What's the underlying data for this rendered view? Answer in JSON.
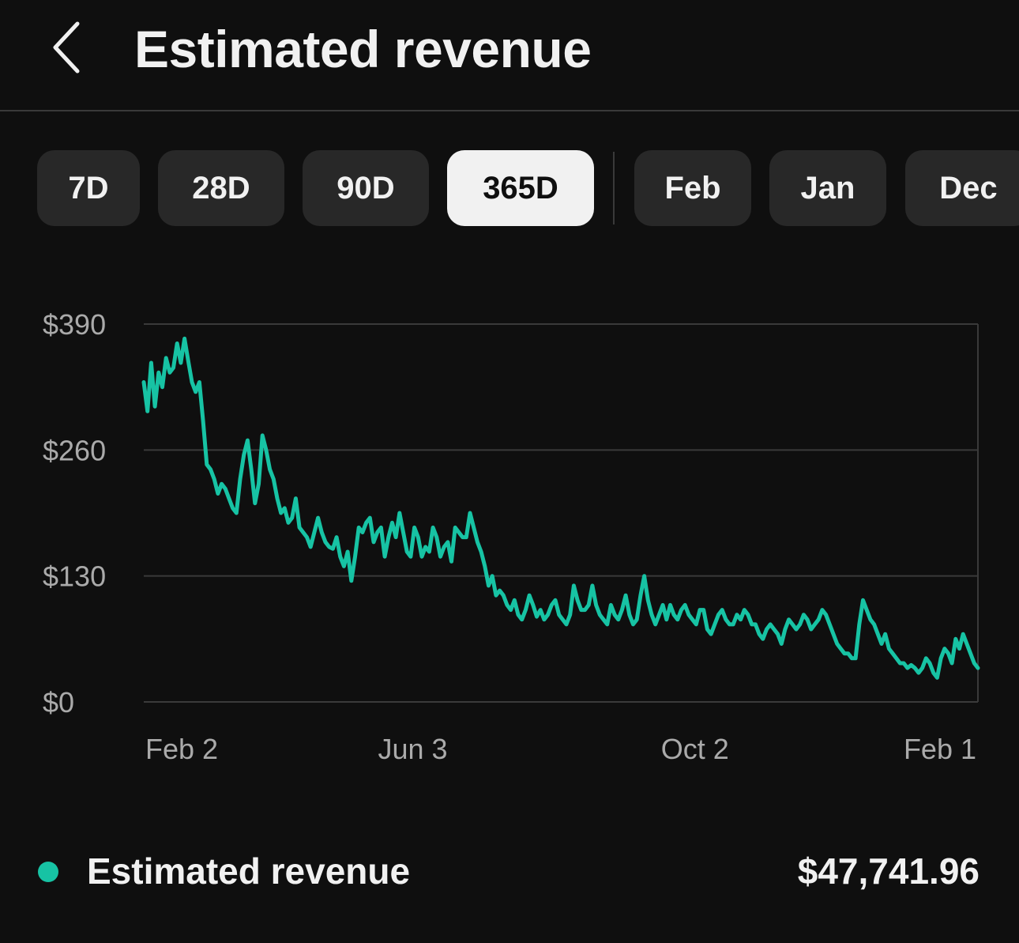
{
  "header": {
    "title": "Estimated revenue",
    "back_icon": "chevron-left-icon"
  },
  "range_chips": [
    {
      "label": "7D",
      "selected": false
    },
    {
      "label": "28D",
      "selected": false
    },
    {
      "label": "90D",
      "selected": false
    },
    {
      "label": "365D",
      "selected": true
    },
    {
      "label": "Feb",
      "selected": false
    },
    {
      "label": "Jan",
      "selected": false
    },
    {
      "label": "Dec",
      "selected": false
    }
  ],
  "colors": {
    "accent": "#17c3a4",
    "background": "#0f0f0f",
    "chip": "#282828",
    "chip_active": "#f1f1f1",
    "grid": "#3a3a3a"
  },
  "chart_data": {
    "type": "line",
    "series": [
      {
        "values": [
          330,
          300,
          350,
          305,
          340,
          325,
          355,
          340,
          345,
          370,
          350,
          375,
          352,
          330,
          320,
          330,
          290,
          245,
          240,
          230,
          215,
          225,
          220,
          210,
          200,
          195,
          230,
          255,
          270,
          240,
          205,
          225,
          275,
          260,
          240,
          230,
          210,
          195,
          200,
          185,
          190,
          210,
          180,
          175,
          170,
          160,
          175,
          190,
          175,
          165,
          160,
          158,
          170,
          150,
          140,
          155,
          125,
          150,
          180,
          175,
          185,
          190,
          165,
          175,
          180,
          150,
          170,
          185,
          170,
          195,
          175,
          155,
          150,
          180,
          170,
          150,
          160,
          155,
          180,
          170,
          150,
          160,
          165,
          145,
          180,
          175,
          170,
          170,
          195,
          180,
          165,
          155,
          140,
          120,
          130,
          110,
          115,
          110,
          100,
          95,
          105,
          90,
          85,
          95,
          110,
          100,
          88,
          95,
          85,
          90,
          100,
          105,
          90,
          85,
          80,
          90,
          120,
          105,
          95,
          95,
          100,
          120,
          100,
          90,
          85,
          80,
          100,
          90,
          85,
          95,
          110,
          90,
          80,
          85,
          110,
          130,
          105,
          90,
          80,
          90,
          100,
          85,
          100,
          90,
          85,
          95,
          100,
          90,
          85,
          80,
          95,
          95,
          75,
          70,
          80,
          90,
          95,
          85,
          80,
          80,
          90,
          85,
          95,
          90,
          80,
          80,
          70,
          65,
          75,
          80,
          75,
          70,
          60,
          75,
          85,
          80,
          75,
          80,
          90,
          85,
          75,
          80,
          85,
          95,
          90,
          80,
          70,
          60,
          55,
          50,
          50,
          45,
          45,
          80,
          105,
          95,
          85,
          80,
          70,
          60,
          70,
          55,
          50,
          45,
          40,
          40,
          35,
          38,
          35,
          30,
          35,
          45,
          40,
          30,
          25,
          45,
          55,
          50,
          40,
          65,
          55,
          70,
          60,
          50,
          40,
          35
        ]
      }
    ],
    "x_tick_labels": [
      "Feb 2",
      "Jun 3",
      "Oct 2",
      "Feb 1"
    ],
    "x_tick_positions": [
      0,
      0.3225,
      0.6608,
      1
    ],
    "y_ticks": [
      "$390",
      "$260",
      "$130",
      "$0"
    ],
    "y_tick_values": [
      390,
      260,
      130,
      0
    ],
    "ylim": [
      0,
      390
    ],
    "grid": true
  },
  "summary": {
    "label": "Estimated revenue",
    "value": "$47,741.96"
  }
}
